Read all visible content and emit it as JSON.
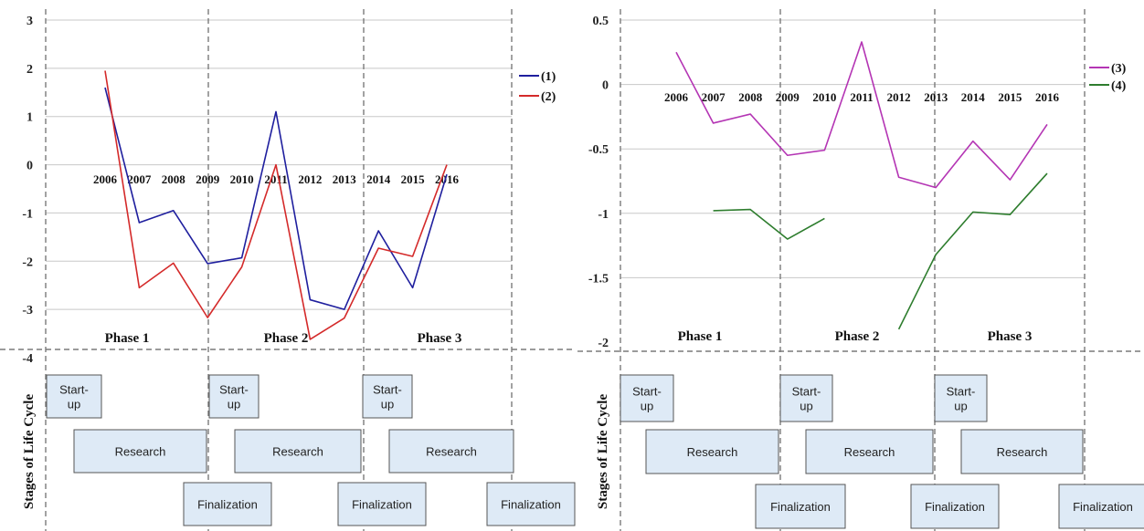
{
  "chart_data": [
    {
      "type": "line",
      "x": [
        "2006",
        "2007",
        "2008",
        "2009",
        "2010",
        "2011",
        "2012",
        "2013",
        "2014",
        "2015",
        "2016"
      ],
      "ylim": [
        -4,
        3
      ],
      "yticks": [
        "-4",
        "-3",
        "-2",
        "-1",
        "0",
        "1",
        "2",
        "3"
      ],
      "grid": true,
      "legend": "top-right",
      "series": [
        {
          "name": "(1)",
          "color": "#1f1f9e",
          "values": [
            1.6,
            -1.2,
            -0.95,
            -2.05,
            -1.93,
            1.1,
            -2.8,
            -3.0,
            -1.37,
            -2.55,
            -0.2
          ]
        },
        {
          "name": "(2)",
          "color": "#d42a2a",
          "values": [
            1.95,
            -2.55,
            -2.04,
            -3.17,
            -2.12,
            0.0,
            -3.62,
            -3.18,
            -1.73,
            -1.9,
            0.0
          ]
        }
      ],
      "phases": [
        "Phase 1",
        "Phase 2",
        "Phase 3"
      ],
      "lifecycle_title": "Stages of Life Cycle",
      "lifecycle": [
        {
          "label": "Start-\nup",
          "row": 0,
          "phase": 0
        },
        {
          "label": "Start-\nup",
          "row": 0,
          "phase": 1
        },
        {
          "label": "Start-\nup",
          "row": 0,
          "phase": 2
        },
        {
          "label": "Research",
          "row": 1,
          "phase": 0
        },
        {
          "label": "Research",
          "row": 1,
          "phase": 1
        },
        {
          "label": "Research",
          "row": 1,
          "phase": 2
        },
        {
          "label": "Finalization",
          "row": 2,
          "phase": 0
        },
        {
          "label": "Finalization",
          "row": 2,
          "phase": 1
        },
        {
          "label": "Finalization",
          "row": 2,
          "phase": 2
        }
      ]
    },
    {
      "type": "line",
      "x": [
        "2006",
        "2007",
        "2008",
        "2009",
        "2010",
        "2011",
        "2012",
        "2013",
        "2014",
        "2015",
        "2016"
      ],
      "ylim": [
        -2,
        0.5
      ],
      "yticks": [
        "-2",
        "-1.5",
        "-1",
        "-0.5",
        "0",
        "0.5"
      ],
      "grid": true,
      "legend": "top-right",
      "series": [
        {
          "name": "(3)",
          "color": "#b435b4",
          "values": [
            0.25,
            -0.3,
            -0.23,
            -0.55,
            -0.51,
            0.33,
            -0.72,
            -0.8,
            -0.44,
            -0.74,
            -0.31
          ]
        },
        {
          "name": "(4)",
          "color": "#2e7d2e",
          "values": [
            null,
            -0.98,
            -0.97,
            -1.2,
            -1.04,
            null,
            -1.9,
            -1.32,
            -0.99,
            -1.01,
            -0.69
          ]
        }
      ],
      "phases": [
        "Phase 1",
        "Phase 2",
        "Phase 3"
      ],
      "lifecycle_title": "Stages of Life Cycle",
      "lifecycle": [
        {
          "label": "Start-\nup",
          "row": 0,
          "phase": 0
        },
        {
          "label": "Start-\nup",
          "row": 0,
          "phase": 1
        },
        {
          "label": "Start-\nup",
          "row": 0,
          "phase": 2
        },
        {
          "label": "Research",
          "row": 1,
          "phase": 0
        },
        {
          "label": "Research",
          "row": 1,
          "phase": 1
        },
        {
          "label": "Research",
          "row": 1,
          "phase": 2
        },
        {
          "label": "Finalization",
          "row": 2,
          "phase": 0
        },
        {
          "label": "Finalization",
          "row": 2,
          "phase": 1
        },
        {
          "label": "Finalization",
          "row": 2,
          "phase": 2
        }
      ]
    }
  ]
}
